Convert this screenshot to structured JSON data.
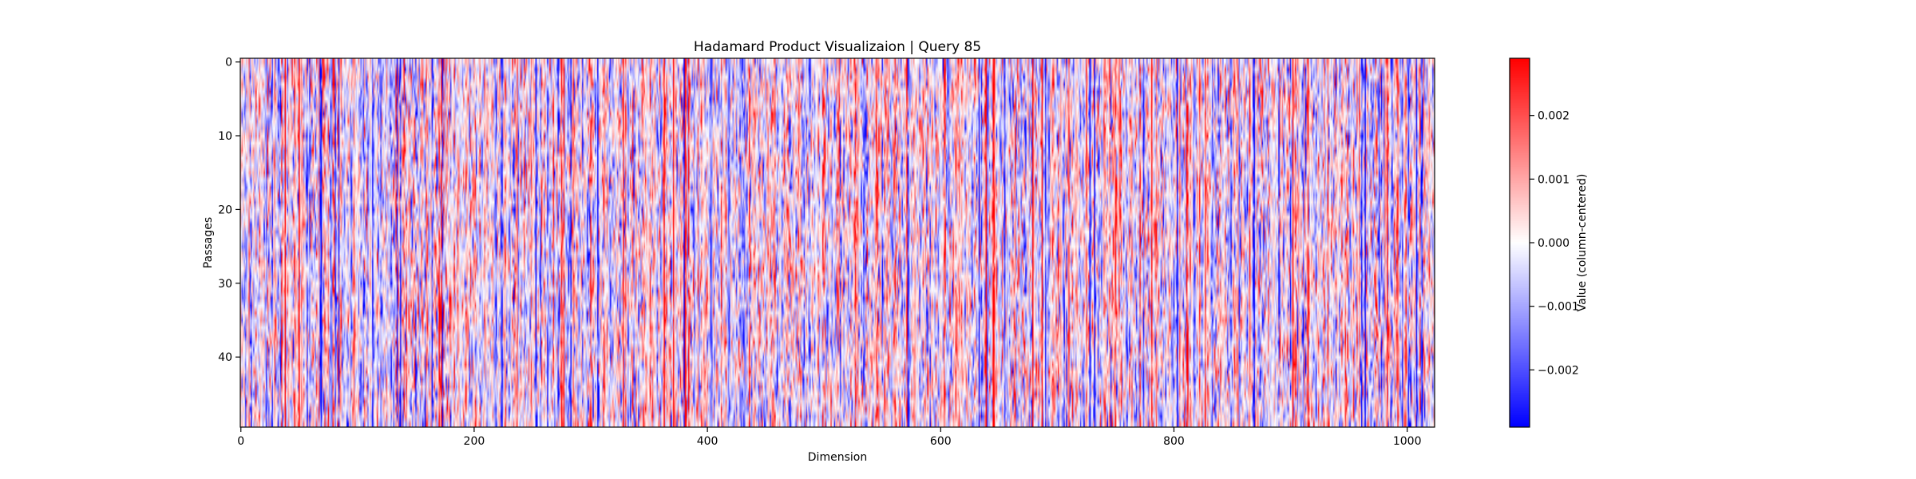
{
  "chart_data": {
    "type": "heatmap",
    "title": "Hadamard Product Visualizaion | Query 85",
    "xlabel": "Dimension",
    "ylabel": "Passages",
    "colorbar_label": "Value (column-centered)",
    "colormap": "bwr",
    "colormap_colors": [
      "#0000ff",
      "#ffffff",
      "#ff0000"
    ],
    "n_rows": 50,
    "n_cols": 1024,
    "value_range": [
      -0.0029,
      0.0029
    ],
    "x_ticks": [
      0,
      200,
      400,
      600,
      800,
      1000
    ],
    "x_tick_labels": [
      "0",
      "200",
      "400",
      "600",
      "800",
      "1000"
    ],
    "y_ticks": [
      0,
      10,
      20,
      30,
      40
    ],
    "y_tick_labels": [
      "0",
      "10",
      "20",
      "30",
      "40"
    ],
    "colorbar_ticks": [
      0.002,
      0.001,
      0.0,
      -0.001,
      -0.002
    ],
    "colorbar_tick_labels": [
      "0.002",
      "0.001",
      "0.000",
      "−0.001",
      "−0.002"
    ]
  }
}
